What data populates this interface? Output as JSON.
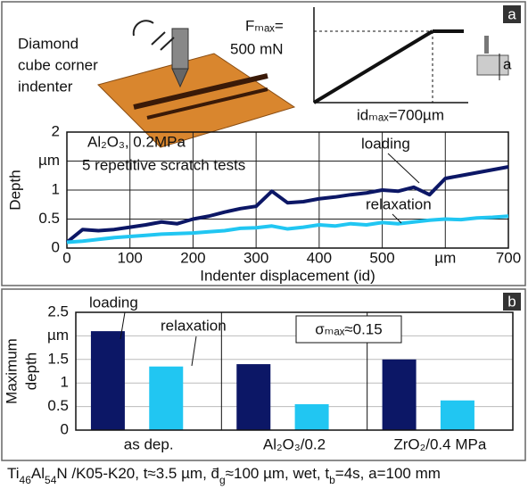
{
  "schematic": {
    "indenter_lines": [
      "Diamond",
      "cube corner",
      "indenter"
    ],
    "force": "Fₘₐₓ=",
    "force_value": "500 mN",
    "displacement": "idₘₐₓ=700µm",
    "depth_symbol": "a"
  },
  "chart_data": [
    {
      "type": "line",
      "panel_label": "a",
      "x_label": "Indenter displacement (id)",
      "y_label": "Depth",
      "annotations": [
        "Al₂O₃, 0.2MPa",
        "5 repetitive scratch tests"
      ],
      "x": [
        0,
        25,
        50,
        75,
        100,
        125,
        150,
        175,
        200,
        225,
        250,
        275,
        300,
        325,
        350,
        375,
        400,
        425,
        450,
        475,
        500,
        525,
        550,
        575,
        600,
        625,
        650,
        675,
        700
      ],
      "series": [
        {
          "name": "loading",
          "color": "#0c1766",
          "values": [
            0.1,
            0.32,
            0.3,
            0.32,
            0.36,
            0.4,
            0.45,
            0.42,
            0.5,
            0.55,
            0.62,
            0.68,
            0.72,
            0.98,
            0.78,
            0.8,
            0.85,
            0.88,
            0.92,
            0.95,
            1.0,
            0.98,
            1.05,
            0.92,
            1.2,
            1.25,
            1.3,
            1.35,
            1.4
          ]
        },
        {
          "name": "relaxation",
          "color": "#21c6f2",
          "values": [
            0.1,
            0.12,
            0.15,
            0.18,
            0.2,
            0.22,
            0.24,
            0.25,
            0.26,
            0.28,
            0.3,
            0.34,
            0.35,
            0.38,
            0.33,
            0.36,
            0.4,
            0.38,
            0.42,
            0.4,
            0.44,
            0.42,
            0.45,
            0.48,
            0.5,
            0.49,
            0.52,
            0.53,
            0.55
          ]
        }
      ],
      "xlim": [
        0,
        700
      ],
      "xticks": [
        0,
        100,
        200,
        300,
        400,
        500,
        {
          "value": 600,
          "label": "µm"
        },
        700
      ],
      "ylim": [
        0,
        2
      ],
      "yticks": [
        0,
        0.5,
        1,
        {
          "value": 1.5,
          "label": "µm"
        },
        2
      ],
      "grid": true
    },
    {
      "type": "bar",
      "panel_label": "b",
      "y_label": [
        "Maximum",
        "depth"
      ],
      "annotations": [
        "σₘₐₓ≈0.15"
      ],
      "categories": [
        "as dep.",
        "Al₂O₃/0.2",
        "ZrO₂/0.4 MPa"
      ],
      "series": [
        {
          "name": "loading",
          "color": "#0c1766",
          "values": [
            2.1,
            1.4,
            1.5
          ]
        },
        {
          "name": "relaxation",
          "color": "#21c6f2",
          "values": [
            1.35,
            0.55,
            0.63
          ]
        }
      ],
      "ylim": [
        0,
        2.5
      ],
      "yticks": [
        0,
        0.5,
        1,
        1.5,
        {
          "value": 2,
          "label": "µm"
        },
        2.5
      ],
      "grid": true
    }
  ],
  "caption": [
    "Ti",
    "46",
    "Al",
    "54",
    "N /K05-K20, t≈3.5 µm, d̄",
    "g",
    "≈100 µm, wet, t",
    "b",
    "=4s, a=100 mm"
  ]
}
